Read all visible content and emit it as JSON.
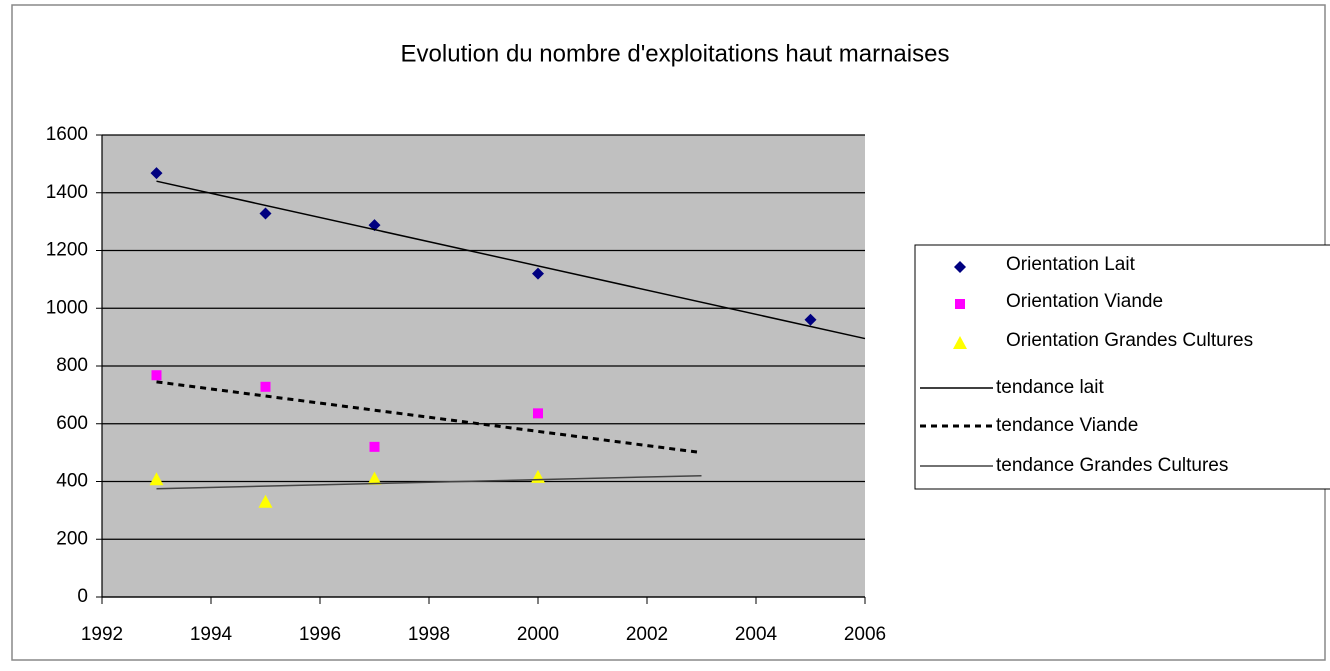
{
  "chart_data": {
    "type": "scatter",
    "title": "Evolution du nombre d'exploitations haut marnaises",
    "xlim": [
      1992,
      2006
    ],
    "xticks": [
      1992,
      1994,
      1996,
      1998,
      2000,
      2002,
      2004,
      2006
    ],
    "ylim": [
      0,
      1600
    ],
    "yticks": [
      0,
      200,
      400,
      600,
      800,
      1000,
      1200,
      1400,
      1600
    ],
    "grid": true,
    "legend": "right",
    "series": [
      {
        "name": "Orientation Lait",
        "color": "#000080",
        "marker": "diamond",
        "x": [
          1993,
          1995,
          1997,
          2000,
          2005
        ],
        "values": [
          1468,
          1328,
          1288,
          1120,
          960
        ]
      },
      {
        "name": "Orientation Viande",
        "color": "#ff00ff",
        "marker": "square",
        "x": [
          1993,
          1995,
          1997,
          2000
        ],
        "values": [
          768,
          728,
          520,
          636
        ]
      },
      {
        "name": "Orientation Grandes Cultures",
        "color": "#ffff00",
        "marker": "triangle",
        "x": [
          1993,
          1995,
          1997,
          2000
        ],
        "values": [
          408,
          330,
          410,
          416
        ]
      },
      {
        "name": "tendance lait",
        "color": "#000000",
        "line": "solid",
        "x": [
          1993,
          2006
        ],
        "values": [
          1440,
          895
        ]
      },
      {
        "name": "tendance Viande",
        "color": "#000000",
        "line": "dashed",
        "x": [
          1993,
          2003
        ],
        "values": [
          745,
          500
        ]
      },
      {
        "name": "tendance Grandes Cultures",
        "color": "#444444",
        "line": "solid",
        "x": [
          1993,
          2003
        ],
        "values": [
          375,
          420
        ]
      }
    ]
  }
}
